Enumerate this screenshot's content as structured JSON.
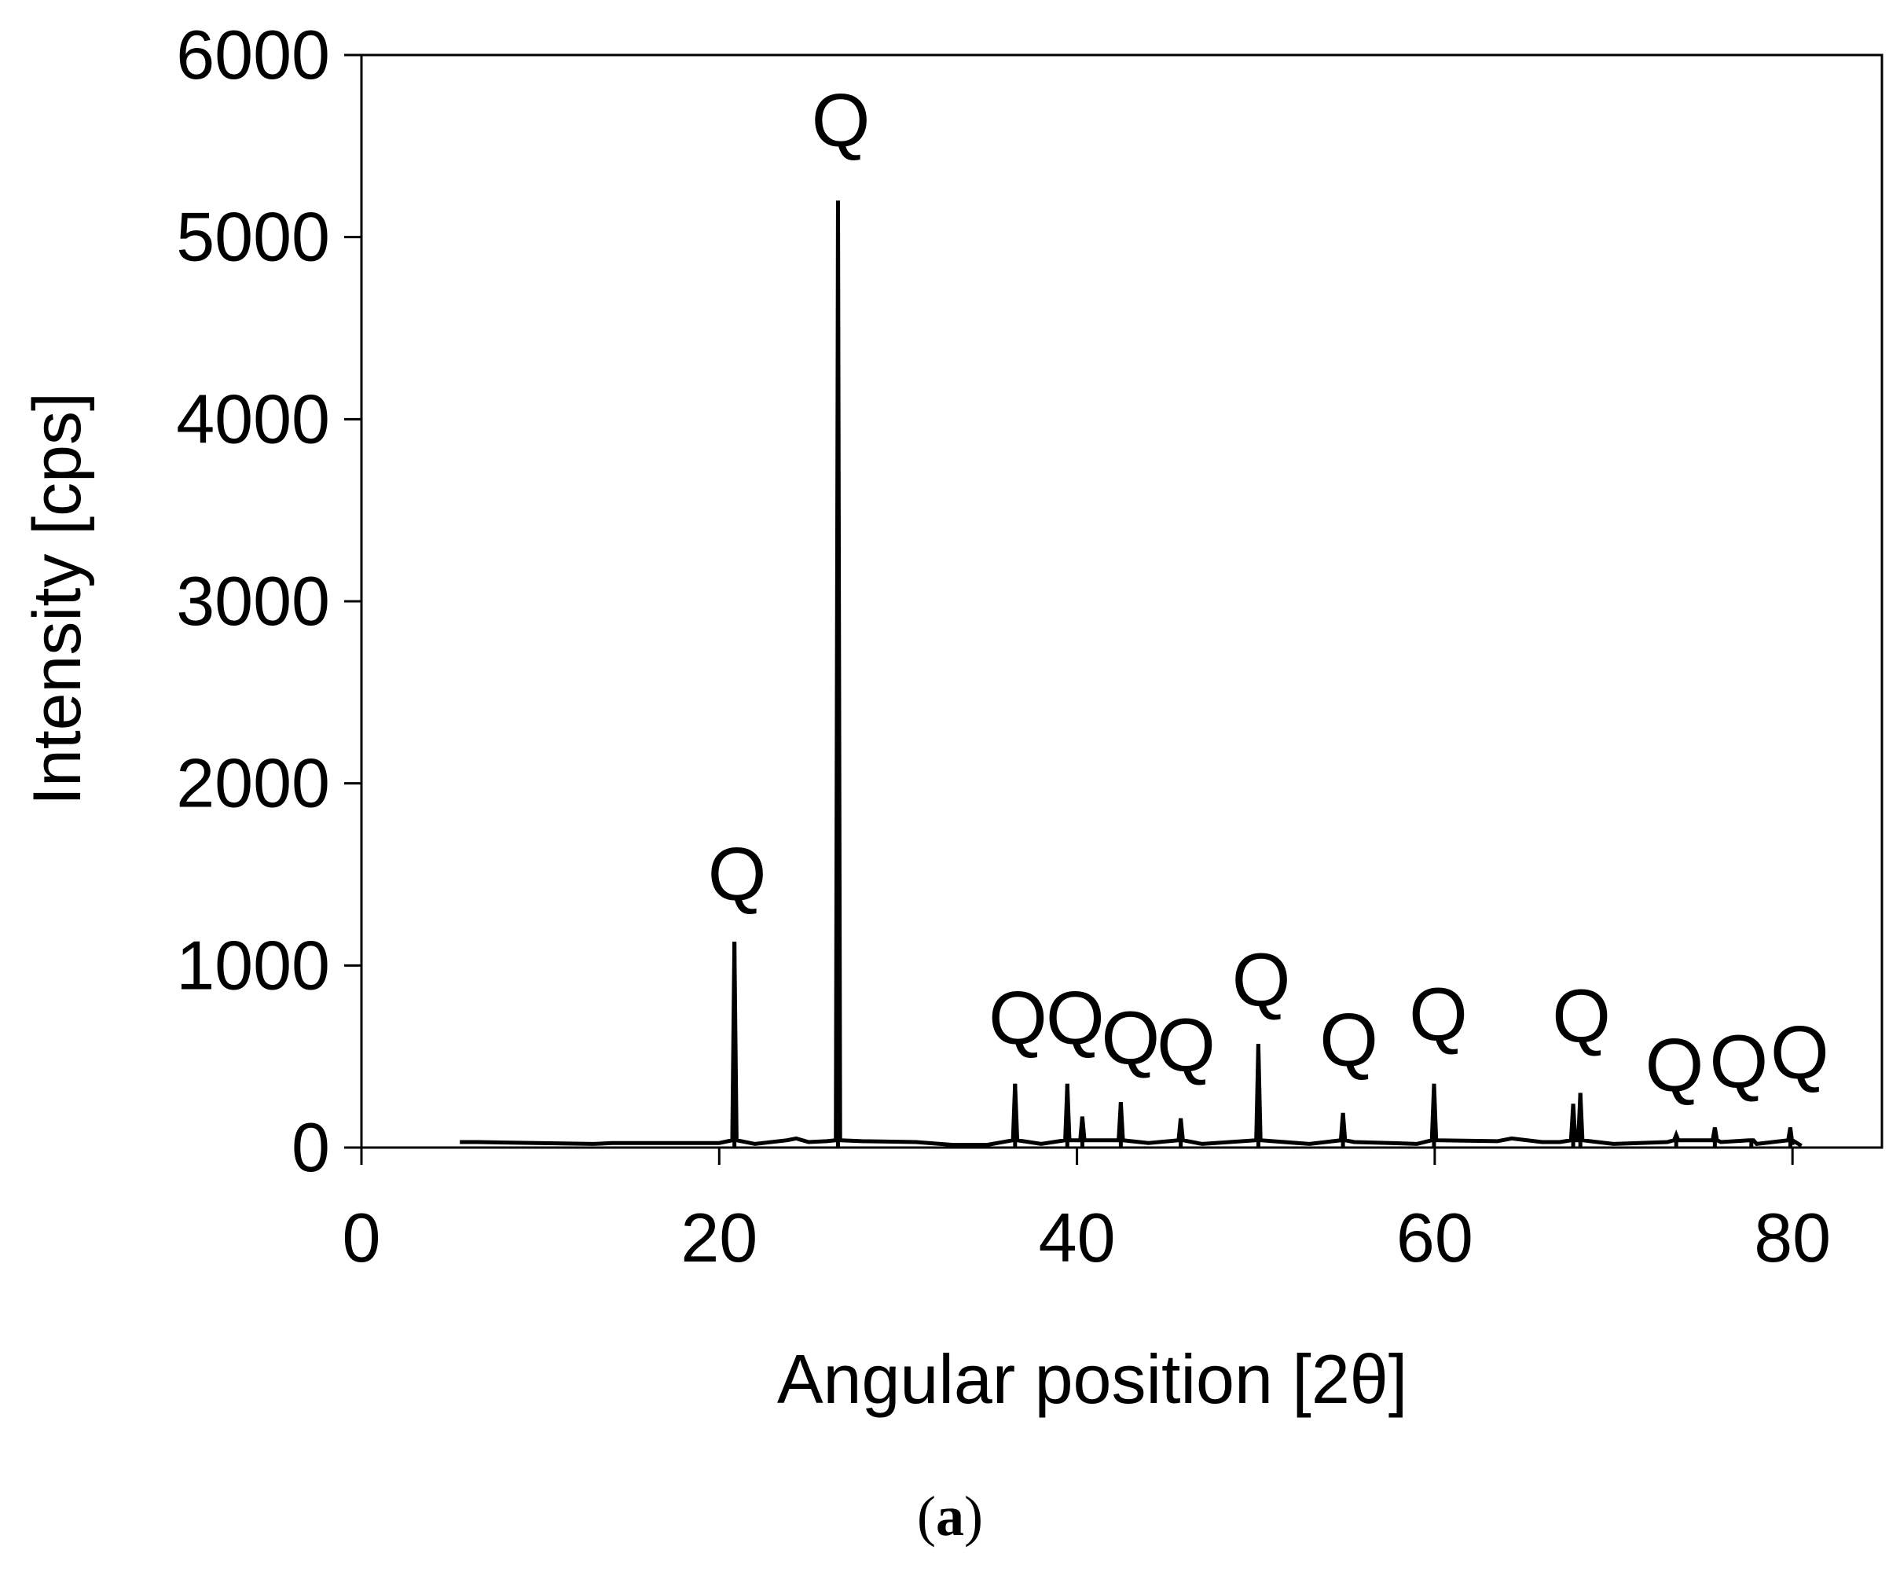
{
  "chart_data": {
    "type": "line",
    "title": "",
    "xlabel": "Angular position [2θ]",
    "ylabel": "Intensity [cps]",
    "xlim": [
      0,
      85
    ],
    "ylim": [
      0,
      6000
    ],
    "xticks": [
      0,
      20,
      40,
      60,
      80
    ],
    "yticks": [
      0,
      1000,
      2000,
      3000,
      4000,
      5000,
      6000
    ],
    "xtick_labels": [
      "0",
      "20",
      "40",
      "60",
      "80"
    ],
    "ytick_labels": [
      "0",
      "1000",
      "2000",
      "3000",
      "4000",
      "5000",
      "6000"
    ],
    "grid": false,
    "legend": "none",
    "series": [
      {
        "color": "#000000",
        "baseline": [
          [
            5.5,
            30
          ],
          [
            6.5,
            30
          ],
          [
            13,
            20
          ],
          [
            14,
            25
          ],
          [
            20,
            25
          ],
          [
            22,
            20
          ],
          [
            23.8,
            40
          ],
          [
            24.3,
            50
          ],
          [
            25,
            30
          ],
          [
            26,
            35
          ],
          [
            28,
            35
          ],
          [
            31,
            30
          ],
          [
            33,
            15
          ],
          [
            35,
            15
          ],
          [
            38,
            20
          ],
          [
            41,
            40
          ],
          [
            44,
            25
          ],
          [
            47,
            20
          ],
          [
            53,
            20
          ],
          [
            55.5,
            30
          ],
          [
            57.5,
            25
          ],
          [
            59,
            20
          ],
          [
            63.5,
            35
          ],
          [
            64.3,
            50
          ],
          [
            66,
            30
          ],
          [
            67,
            30
          ],
          [
            70,
            20
          ],
          [
            73,
            30
          ],
          [
            76,
            30
          ],
          [
            78,
            20
          ],
          [
            80,
            15
          ],
          [
            80.5,
            10
          ]
        ],
        "peaks": [
          [
            20.85,
            1130
          ],
          [
            26.64,
            5200
          ],
          [
            36.54,
            350
          ],
          [
            39.46,
            350
          ],
          [
            40.3,
            170
          ],
          [
            42.45,
            250
          ],
          [
            45.8,
            160
          ],
          [
            50.14,
            570
          ],
          [
            54.87,
            190
          ],
          [
            59.96,
            350
          ],
          [
            67.74,
            240
          ],
          [
            68.14,
            300
          ],
          [
            73.5,
            70
          ],
          [
            75.66,
            110
          ],
          [
            77.7,
            40
          ],
          [
            79.88,
            110
          ]
        ]
      }
    ],
    "annotations": [
      {
        "text": "Q",
        "x": 21.0,
        "y": 1360
      },
      {
        "text": "Q",
        "x": 26.8,
        "y": 5500
      },
      {
        "text": "Q",
        "x": 36.7,
        "y": 570
      },
      {
        "text": "Q",
        "x": 39.9,
        "y": 570
      },
      {
        "text": "Q",
        "x": 43.0,
        "y": 460
      },
      {
        "text": "Q",
        "x": 46.1,
        "y": 420
      },
      {
        "text": "Q",
        "x": 50.3,
        "y": 780
      },
      {
        "text": "Q",
        "x": 55.2,
        "y": 450
      },
      {
        "text": "Q",
        "x": 60.2,
        "y": 590
      },
      {
        "text": "Q",
        "x": 68.2,
        "y": 580
      },
      {
        "text": "Q",
        "x": 73.4,
        "y": 310
      },
      {
        "text": "Q",
        "x": 77.0,
        "y": 330
      },
      {
        "text": "Q",
        "x": 80.4,
        "y": 380
      }
    ]
  },
  "figure": {
    "panel_label_open": "(",
    "panel_label_letter": "a",
    "panel_label_close": ")"
  }
}
